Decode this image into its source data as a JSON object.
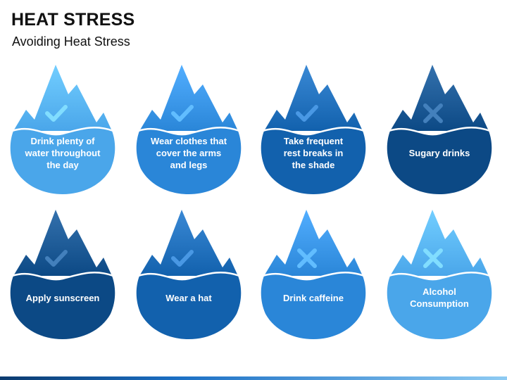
{
  "slide": {
    "title": "HEAT STRESS",
    "subtitle": "Avoiding Heat Stress"
  },
  "cards": [
    {
      "label": "Drink plenty of\nwater throughout\nthe day",
      "icon": "check-icon",
      "color": "#4aa6ea"
    },
    {
      "label": "Wear clothes that\ncover the arms\nand legs",
      "icon": "check-icon",
      "color": "#2a86d8"
    },
    {
      "label": "Take frequent\nrest breaks in\nthe shade",
      "icon": "check-icon",
      "color": "#1261ad"
    },
    {
      "label": "Sugary drinks",
      "icon": "cross-icon",
      "color": "#0c4985"
    },
    {
      "label": "Apply sunscreen",
      "icon": "check-icon",
      "color": "#0c4985"
    },
    {
      "label": "Wear a hat",
      "icon": "check-icon",
      "color": "#1261ad"
    },
    {
      "label": "Drink caffeine",
      "icon": "cross-icon",
      "color": "#2a86d8"
    },
    {
      "label": "Alcohol\nConsumption",
      "icon": "cross-icon",
      "color": "#4aa6ea"
    }
  ],
  "colors": {
    "bottom_bar_dark": "#0b3a6e",
    "bottom_bar_light": "#8ecbf3"
  }
}
